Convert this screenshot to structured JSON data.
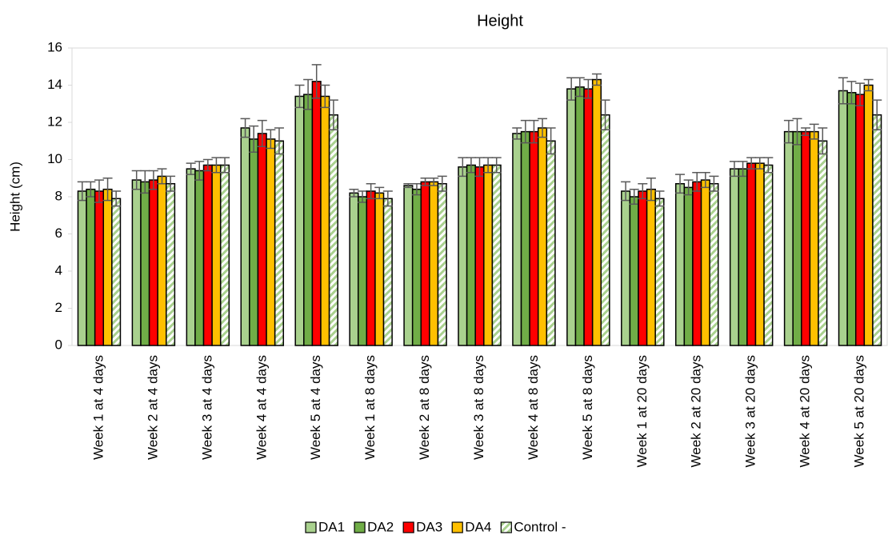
{
  "chart_data": {
    "type": "bar",
    "title": "Height",
    "y_label": "Height  (cm)",
    "categories": [
      "Week 1 at 4 days",
      "Week 2 at 4 days",
      "Week 3 at 4 days",
      "Week 4 at 4 days",
      "Week 5 at 4 days",
      "Week 1 at 8 days",
      "Week 2 at 8 days",
      "Week 3 at 8 days",
      "Week 4 at 8 days",
      "Week 5 at 8 days",
      "Week 1 at 20 days",
      "Week 2 at 20 days",
      "Week 3 at 20 days",
      "Week 4 at 20 days",
      "Week 5 at 20 days"
    ],
    "series": [
      {
        "name": "DA1",
        "color": "#a9d18e",
        "values": [
          8.3,
          8.9,
          9.5,
          11.7,
          13.4,
          8.2,
          8.6,
          9.6,
          11.4,
          13.8,
          8.3,
          8.7,
          9.5,
          11.5,
          13.7
        ],
        "errors": [
          0.5,
          0.5,
          0.3,
          0.5,
          0.6,
          0.2,
          0.1,
          0.5,
          0.3,
          0.6,
          0.5,
          0.5,
          0.4,
          0.6,
          0.7
        ]
      },
      {
        "name": "DA2",
        "color": "#70ad47",
        "values": [
          8.4,
          8.8,
          9.4,
          11.1,
          13.5,
          8.0,
          8.4,
          9.7,
          11.5,
          13.9,
          8.0,
          8.5,
          9.5,
          11.5,
          13.6
        ],
        "errors": [
          0.4,
          0.6,
          0.5,
          0.7,
          0.8,
          0.3,
          0.3,
          0.4,
          0.6,
          0.5,
          0.4,
          0.4,
          0.4,
          0.7,
          0.6
        ]
      },
      {
        "name": "DA3",
        "color": "#ff0000",
        "values": [
          8.3,
          8.9,
          9.7,
          11.4,
          14.2,
          8.3,
          8.8,
          9.6,
          11.5,
          13.8,
          8.3,
          8.8,
          9.8,
          11.5,
          13.5
        ],
        "errors": [
          0.6,
          0.5,
          0.3,
          0.7,
          0.9,
          0.4,
          0.2,
          0.5,
          0.6,
          0.5,
          0.4,
          0.5,
          0.3,
          0.2,
          0.6
        ]
      },
      {
        "name": "DA4",
        "color": "#ffc000",
        "values": [
          8.4,
          9.1,
          9.7,
          11.1,
          13.4,
          8.2,
          8.8,
          9.7,
          11.7,
          14.3,
          8.4,
          8.9,
          9.8,
          11.5,
          14.0
        ],
        "errors": [
          0.6,
          0.4,
          0.4,
          0.5,
          0.6,
          0.3,
          0.2,
          0.4,
          0.5,
          0.3,
          0.6,
          0.4,
          0.3,
          0.4,
          0.3
        ]
      },
      {
        "name": "Control -",
        "color": "#a9d18e",
        "values": [
          7.9,
          8.7,
          9.7,
          11.0,
          12.4,
          7.9,
          8.7,
          9.7,
          11.0,
          12.4,
          7.9,
          8.7,
          9.7,
          11.0,
          12.4
        ],
        "errors": [
          0.4,
          0.4,
          0.4,
          0.7,
          0.8,
          0.4,
          0.4,
          0.4,
          0.7,
          0.8,
          0.4,
          0.4,
          0.4,
          0.7,
          0.8
        ],
        "hatched": true
      }
    ],
    "ylim": [
      0,
      16
    ],
    "yticks": [
      0,
      2,
      4,
      6,
      8,
      10,
      12,
      14,
      16
    ],
    "grid": false,
    "legend": "bottom"
  }
}
